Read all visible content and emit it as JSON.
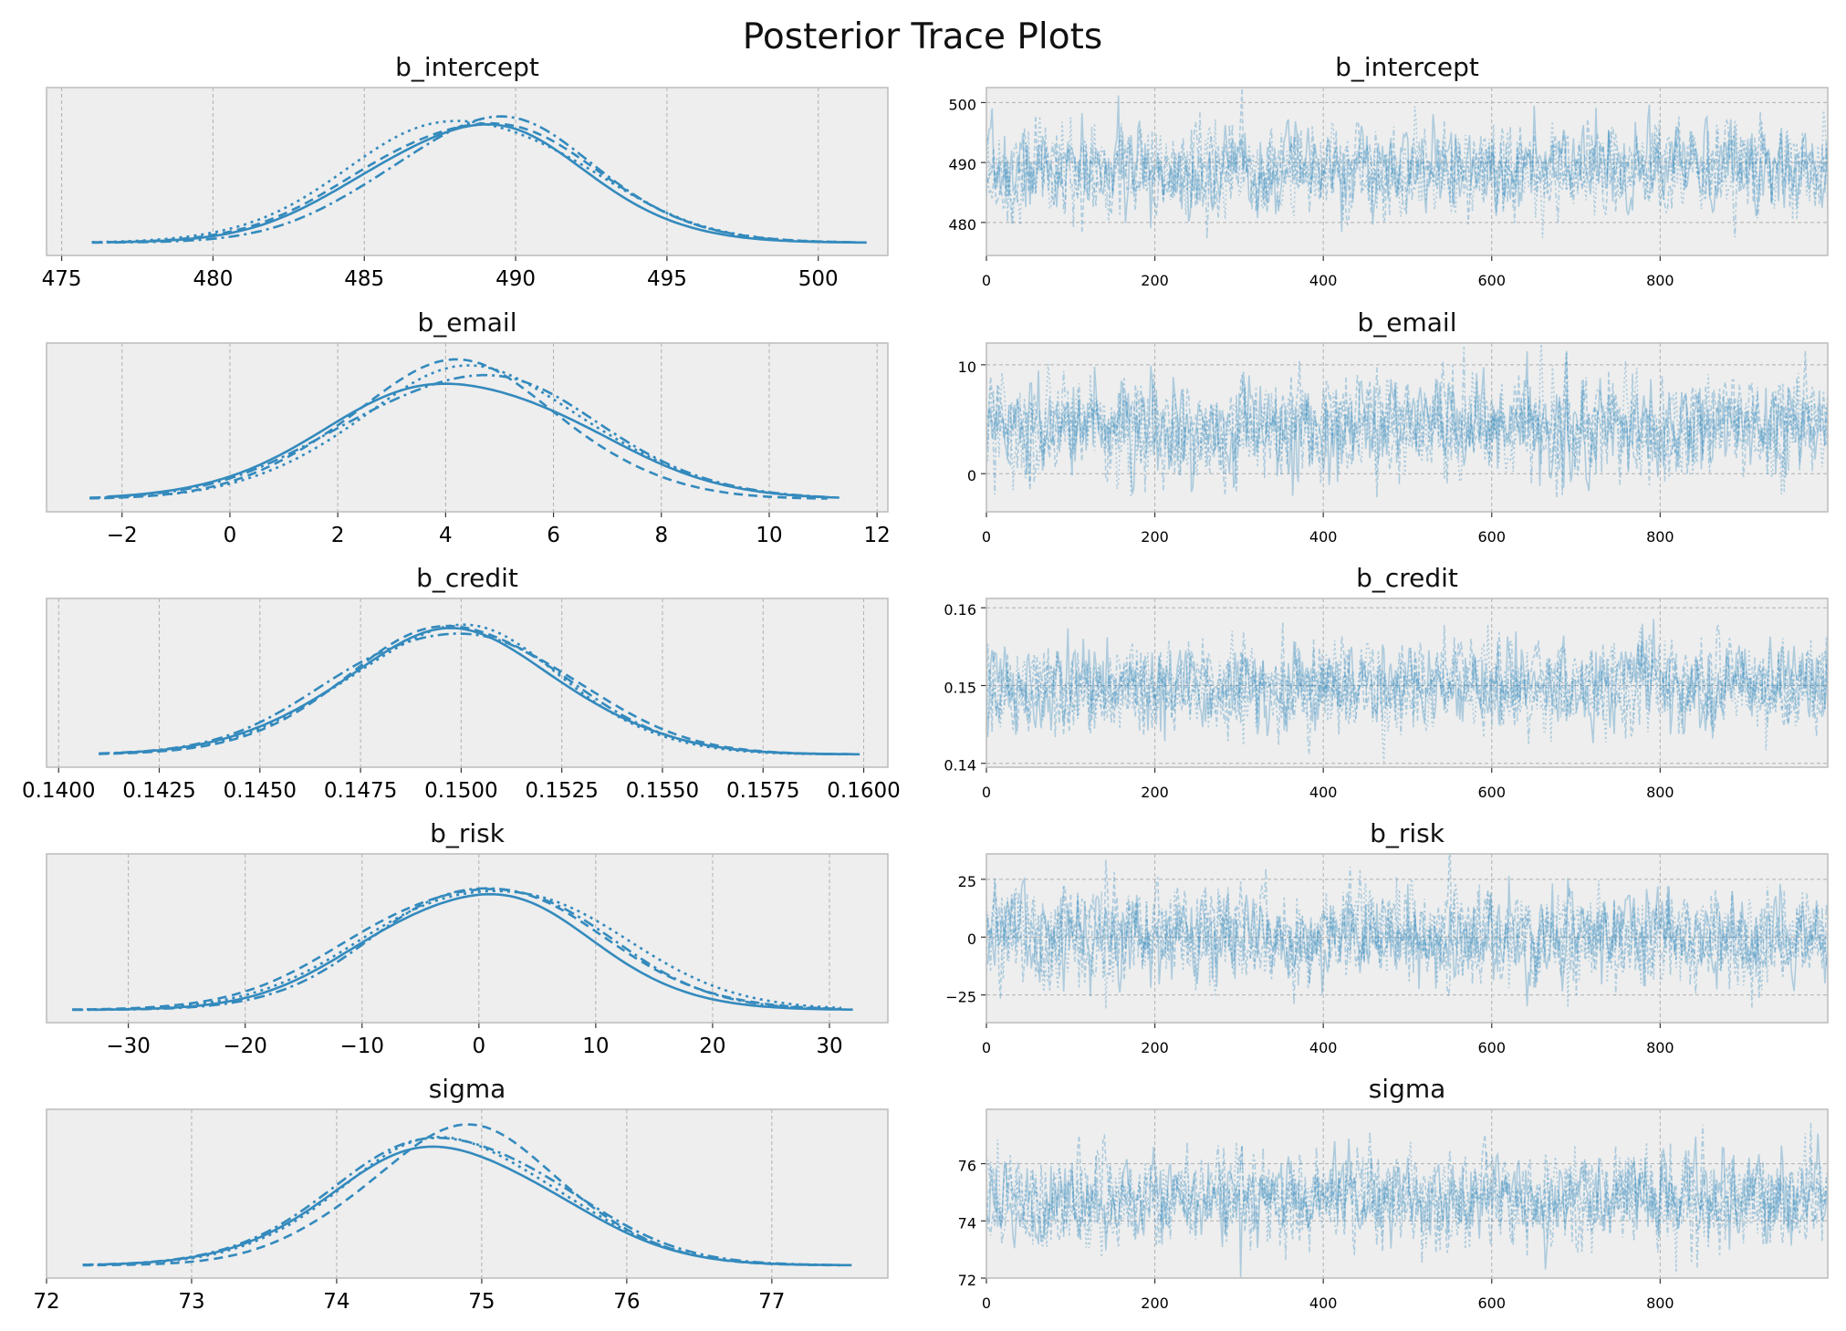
{
  "title": "Posterior Trace Plots",
  "colors": {
    "line": "#348abd",
    "panel": "#eeeeee",
    "grid": "#b0b0b0",
    "spine": "#bcbcbc"
  },
  "chart_data": [
    {
      "parameter": "b_intercept",
      "density": {
        "type": "line",
        "title": "b_intercept",
        "xlim": [
          474.5,
          502.3
        ],
        "xticks": [
          "475",
          "480",
          "485",
          "490",
          "495",
          "500"
        ],
        "mean": 488.8,
        "sd": 3.6,
        "xmin": 476,
        "xmax": 501.6,
        "grid": true
      },
      "trace": {
        "type": "line",
        "title": "b_intercept",
        "xlim": [
          0,
          999
        ],
        "ylim": [
          474.5,
          502.5
        ],
        "xticks": [
          "0",
          "200",
          "400",
          "600",
          "800"
        ],
        "yticks": [
          "480",
          "490",
          "500"
        ],
        "mean": 488.8,
        "sd": 3.6,
        "draws": 1000,
        "chains": 4,
        "grid": true
      }
    },
    {
      "parameter": "b_email",
      "density": {
        "type": "line",
        "title": "b_email",
        "xlim": [
          -3.4,
          12.2
        ],
        "xticks": [
          "−2",
          "0",
          "2",
          "4",
          "6",
          "8",
          "10",
          "12"
        ],
        "mean": 4.4,
        "sd": 2.2,
        "xmin": -2.6,
        "xmax": 11.3,
        "grid": true
      },
      "trace": {
        "type": "line",
        "title": "b_email",
        "xlim": [
          0,
          999
        ],
        "ylim": [
          -3.5,
          12.0
        ],
        "xticks": [
          "0",
          "200",
          "400",
          "600",
          "800"
        ],
        "yticks": [
          "0",
          "10"
        ],
        "mean": 4.4,
        "sd": 2.2,
        "draws": 1000,
        "chains": 4,
        "grid": true
      }
    },
    {
      "parameter": "b_credit",
      "density": {
        "type": "line",
        "title": "b_credit",
        "xlim": [
          0.1397,
          0.1606
        ],
        "xticks": [
          "0.1400",
          "0.1425",
          "0.1450",
          "0.1475",
          "0.1500",
          "0.1525",
          "0.1550",
          "0.1575",
          "0.1600"
        ],
        "mean": 0.1499,
        "sd": 0.0028,
        "xmin": 0.141,
        "xmax": 0.1599,
        "grid": true
      },
      "trace": {
        "type": "line",
        "title": "b_credit",
        "xlim": [
          0,
          999
        ],
        "ylim": [
          0.1395,
          0.1612
        ],
        "xticks": [
          "0",
          "200",
          "400",
          "600",
          "800"
        ],
        "yticks": [
          "0.14",
          "0.15",
          "0.16"
        ],
        "mean": 0.1499,
        "sd": 0.0028,
        "draws": 1000,
        "chains": 4,
        "grid": true
      }
    },
    {
      "parameter": "b_risk",
      "density": {
        "type": "line",
        "title": "b_risk",
        "xlim": [
          -37.0,
          35.0
        ],
        "xticks": [
          "−30",
          "−20",
          "−10",
          "0",
          "10",
          "20",
          "30"
        ],
        "mean": 0.3,
        "sd": 9.8,
        "xmin": -34.8,
        "xmax": 32.0,
        "grid": true
      },
      "trace": {
        "type": "line",
        "title": "b_risk",
        "xlim": [
          0,
          999
        ],
        "ylim": [
          -37.0,
          36.0
        ],
        "xticks": [
          "0",
          "200",
          "400",
          "600",
          "800"
        ],
        "yticks": [
          "−25",
          "0",
          "25"
        ],
        "mean": 0.3,
        "sd": 9.8,
        "draws": 1000,
        "chains": 4,
        "grid": true
      }
    },
    {
      "parameter": "sigma",
      "density": {
        "type": "line",
        "title": "sigma",
        "xlim": [
          72.0,
          77.8
        ],
        "xticks": [
          "72",
          "73",
          "74",
          "75",
          "76",
          "77"
        ],
        "mean": 74.8,
        "sd": 0.75,
        "xmin": 72.25,
        "xmax": 77.55,
        "grid": true
      },
      "trace": {
        "type": "line",
        "title": "sigma",
        "xlim": [
          0,
          999
        ],
        "ylim": [
          72.0,
          77.9
        ],
        "xticks": [
          "0",
          "200",
          "400",
          "600",
          "800"
        ],
        "yticks": [
          "72",
          "74",
          "76"
        ],
        "mean": 74.8,
        "sd": 0.75,
        "draws": 1000,
        "chains": 4,
        "grid": true
      }
    }
  ]
}
